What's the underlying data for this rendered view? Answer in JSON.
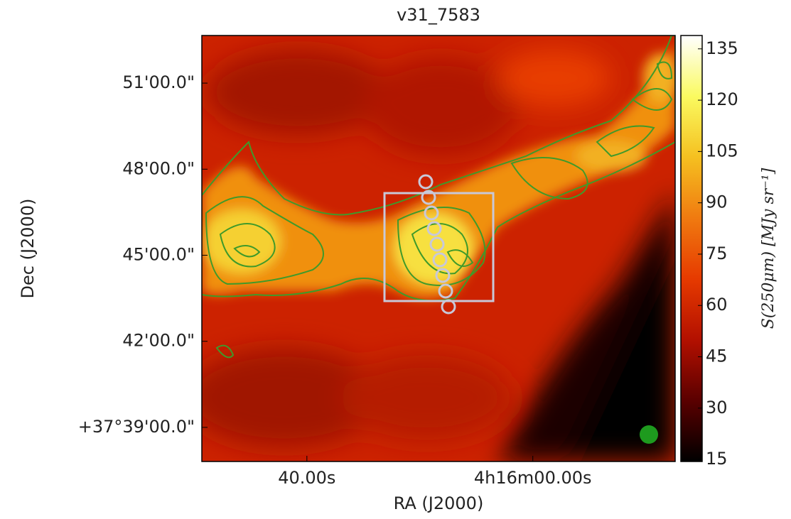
{
  "chart_data": {
    "type": "image",
    "title": "v31_7583",
    "x_label": "RA (J2000)",
    "y_label": "Dec (J2000)",
    "xlim": [
      58.6,
      -25.2
    ],
    "xticks": [
      {
        "value": 40,
        "label": "40.00s"
      },
      {
        "value": 0,
        "label": "4h16m00.00s"
      }
    ],
    "ylim": [
      -1.19,
      13.66
    ],
    "yticks": [
      {
        "value": 12,
        "label": "51'00.0\""
      },
      {
        "value": 9,
        "label": "48'00.0\""
      },
      {
        "value": 6,
        "label": "45'00.0\""
      },
      {
        "value": 3,
        "label": "42'00.0\""
      },
      {
        "value": 0,
        "label": "+37°39'00.0\""
      }
    ],
    "colorbar": {
      "label": "S(250μm) [MJy sr⁻¹]",
      "lim": [
        14.4,
        138.9
      ],
      "ticks": [
        15,
        30,
        45,
        60,
        75,
        90,
        105,
        120,
        135
      ],
      "colormap": [
        "#000000",
        "#5a0000",
        "#b31000",
        "#e63a00",
        "#f07a10",
        "#f5c020",
        "#fafa60",
        "#ffffff"
      ]
    }
  }
}
